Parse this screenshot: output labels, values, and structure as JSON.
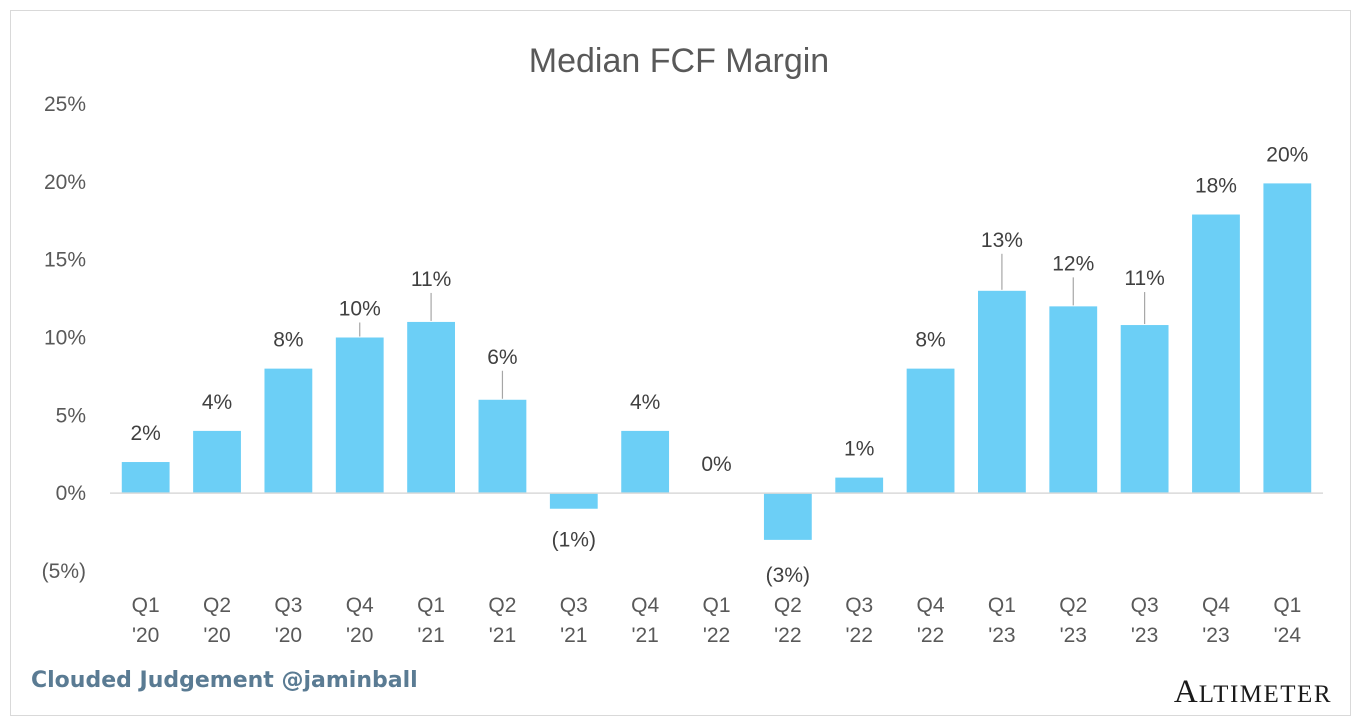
{
  "credit": "Clouded Judgement @jaminball",
  "logo": {
    "text": "ALTIMETER"
  },
  "colors": {
    "bar": "#6ccff6",
    "axis": "#d9d9d9",
    "text": "#595959",
    "credit": "#5a7b93"
  },
  "chart_data": {
    "type": "bar",
    "title": "Median FCF Margin",
    "xlabel": "",
    "ylabel": "",
    "ylim": [
      -5,
      25
    ],
    "yticks": [
      25,
      20,
      15,
      10,
      5,
      0,
      -5
    ],
    "ytick_labels": [
      "25%",
      "20%",
      "15%",
      "10%",
      "5%",
      "0%",
      "(5%)"
    ],
    "grid": false,
    "legend": "none",
    "categories": [
      [
        "Q1",
        "'20"
      ],
      [
        "Q2",
        "'20"
      ],
      [
        "Q3",
        "'20"
      ],
      [
        "Q4",
        "'20"
      ],
      [
        "Q1",
        "'21"
      ],
      [
        "Q2",
        "'21"
      ],
      [
        "Q3",
        "'21"
      ],
      [
        "Q4",
        "'21"
      ],
      [
        "Q1",
        "'22"
      ],
      [
        "Q2",
        "'22"
      ],
      [
        "Q3",
        "'22"
      ],
      [
        "Q4",
        "'22"
      ],
      [
        "Q1",
        "'23"
      ],
      [
        "Q2",
        "'23"
      ],
      [
        "Q3",
        "'23"
      ],
      [
        "Q4",
        "'23"
      ],
      [
        "Q1",
        "'24"
      ]
    ],
    "values": [
      2,
      4,
      8,
      10,
      11,
      6,
      -1,
      4,
      0,
      -3,
      1,
      8,
      13,
      12,
      10.8,
      17.9,
      19.9
    ],
    "data_labels": [
      "2%",
      "4%",
      "8%",
      "10%",
      "11%",
      "6%",
      "(1%)",
      "4%",
      "0%",
      "(3%)",
      "1%",
      "8%",
      "13%",
      "12%",
      "11%",
      "18%",
      "20%"
    ]
  }
}
